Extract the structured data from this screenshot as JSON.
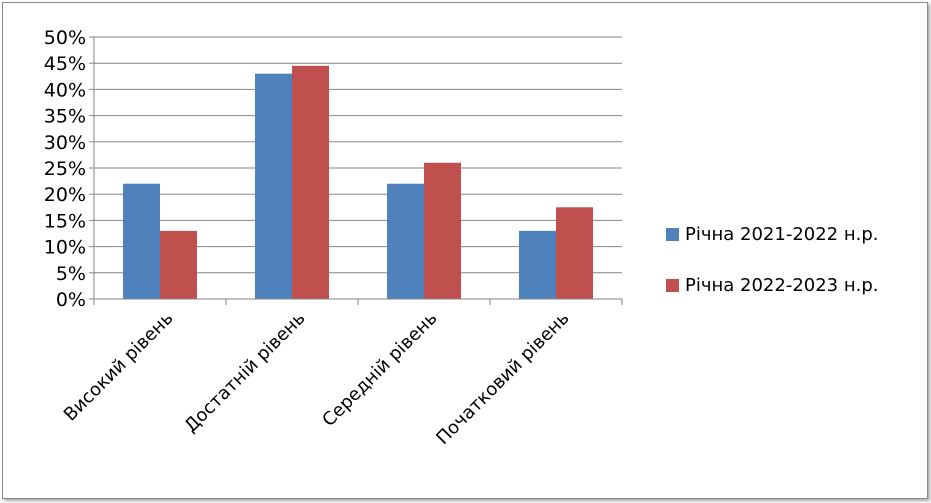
{
  "chart_data": {
    "type": "bar",
    "title": "",
    "xlabel": "",
    "ylabel": "",
    "categories": [
      "Високий рівень",
      "Достатній рівень",
      "Середній рівень",
      "Початковий рівень"
    ],
    "ylim": [
      0,
      0.5
    ],
    "yticks": [
      0,
      0.05,
      0.1,
      0.15,
      0.2,
      0.25,
      0.3,
      0.35,
      0.4,
      0.45,
      0.5
    ],
    "ytick_labels": [
      "0%",
      "5%",
      "10%",
      "15%",
      "20%",
      "25%",
      "30%",
      "35%",
      "40%",
      "45%",
      "50%"
    ],
    "grid": true,
    "legend_position": "right",
    "series": [
      {
        "name": "Річна 2021-2022 н.р.",
        "color": "#4f81bd",
        "values": [
          0.22,
          0.43,
          0.22,
          0.13
        ]
      },
      {
        "name": "Річна 2022-2023 н.р.",
        "color": "#c0504d",
        "values": [
          0.13,
          0.445,
          0.26,
          0.175
        ]
      }
    ]
  }
}
